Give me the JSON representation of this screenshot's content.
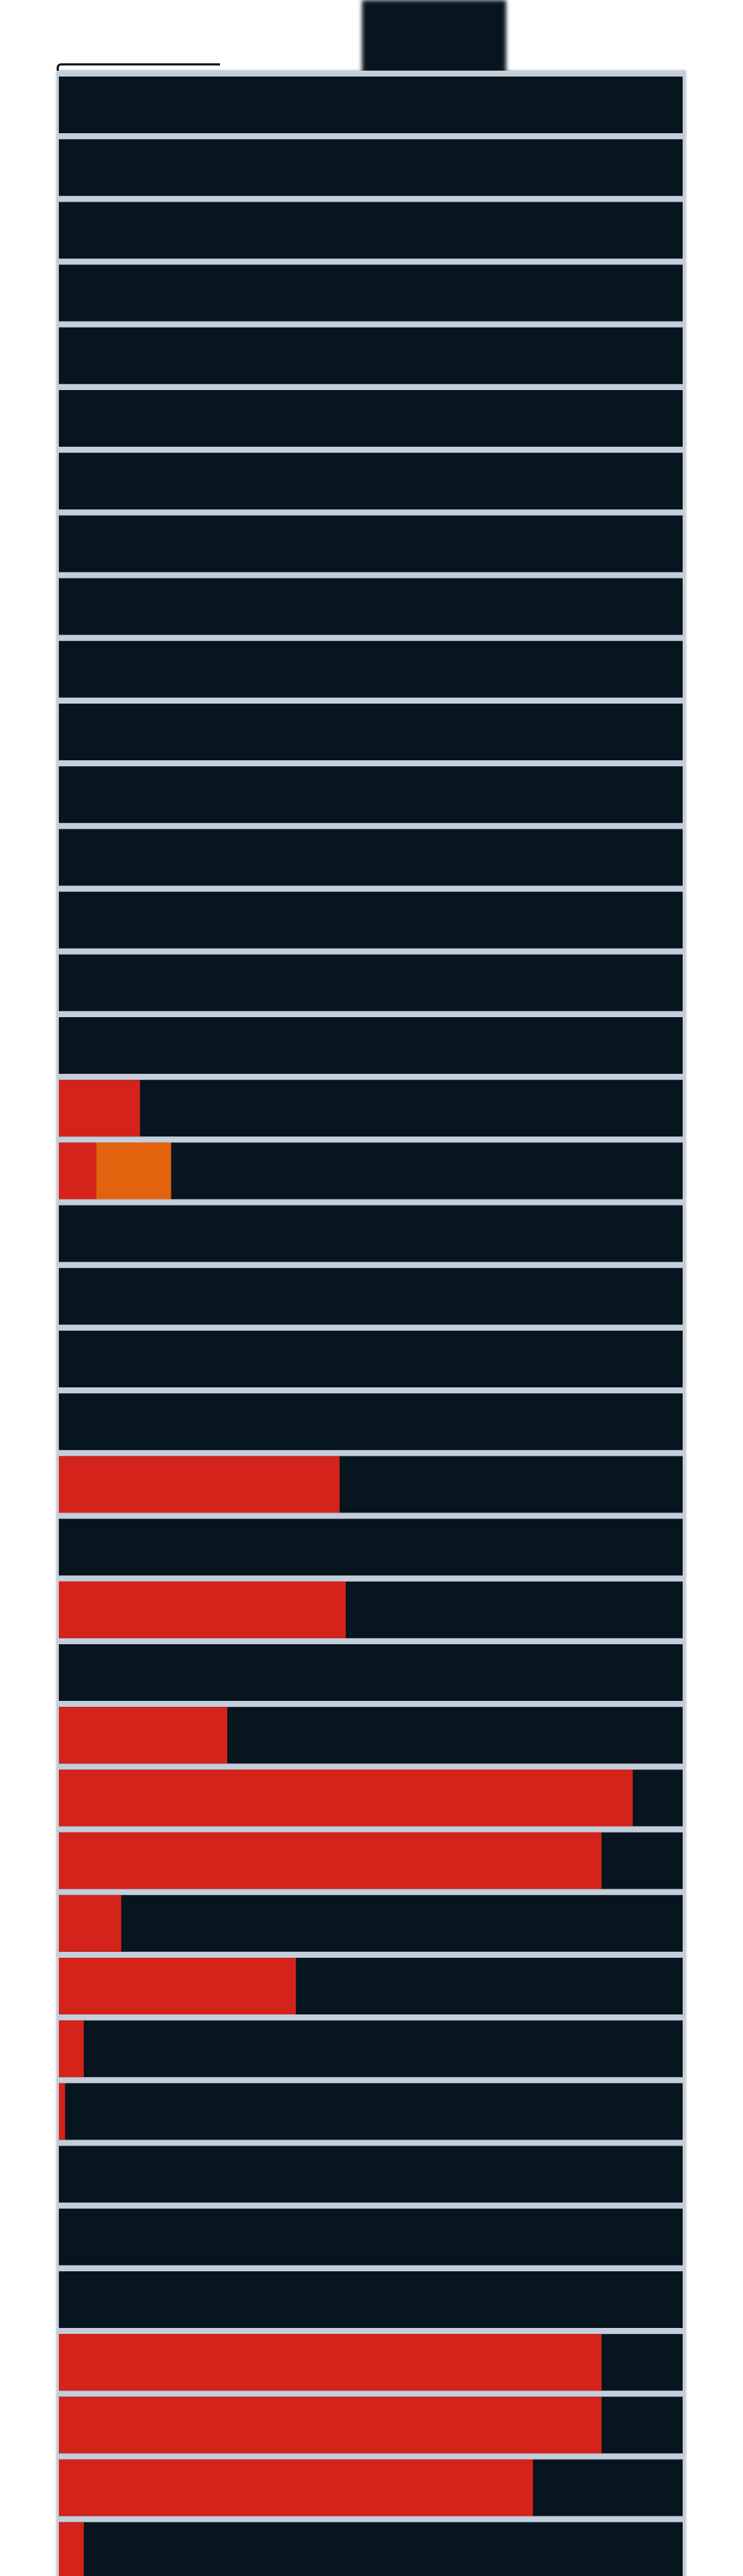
{
  "chart_data": {
    "type": "bar",
    "orientation": "horizontal",
    "stacked": true,
    "xlim": [
      0,
      1
    ],
    "colors": {
      "track": "#07151e",
      "series_1": "#d4231b",
      "series_2": "#e2620e",
      "separator": "#e9edf4"
    },
    "grid": false,
    "legend": "none",
    "series": [
      {
        "color": "#d4231b",
        "values": [
          0,
          0,
          0,
          0,
          0,
          0,
          0,
          0,
          0,
          0,
          0,
          0,
          0,
          0,
          0,
          0,
          0.13,
          0.06,
          0,
          0,
          0,
          0,
          0.45,
          0,
          0.46,
          0,
          0.27,
          0.92,
          0.87,
          0.1,
          0.38,
          0.04,
          0.01,
          0,
          0,
          0,
          0.87,
          0.87,
          0.76,
          0.04
        ]
      },
      {
        "color": "#e2620e",
        "values": [
          0,
          0,
          0,
          0,
          0,
          0,
          0,
          0,
          0,
          0,
          0,
          0,
          0,
          0,
          0,
          0,
          0,
          0.12,
          0,
          0,
          0,
          0,
          0,
          0,
          0,
          0,
          0,
          0,
          0,
          0,
          0,
          0,
          0,
          0,
          0,
          0,
          0,
          0,
          0,
          0
        ]
      }
    ]
  }
}
